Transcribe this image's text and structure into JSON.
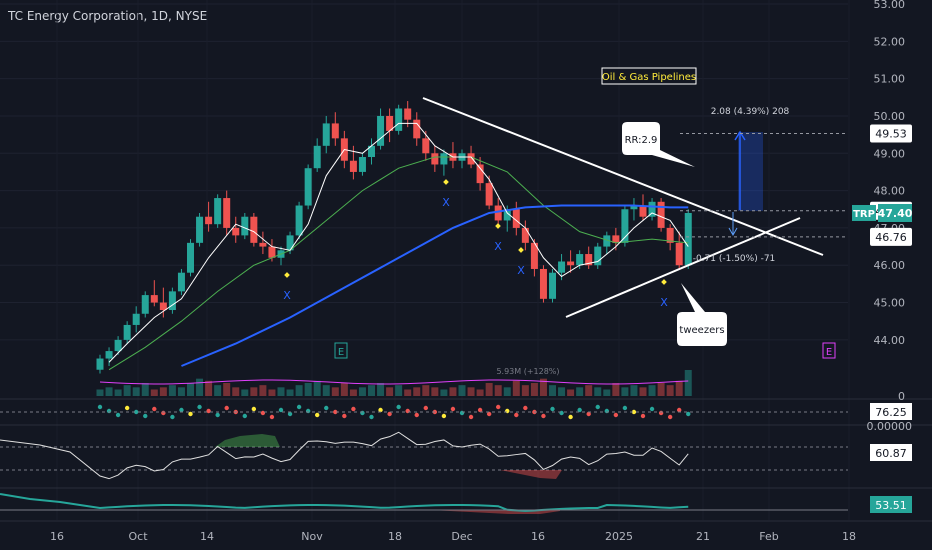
{
  "header": {
    "title": "TC Energy Corporation, 1D, NYSE"
  },
  "annotations": {
    "sector": "Oil & Gas Pipelines",
    "rr": "RR:2.9",
    "tweezers": "tweezers",
    "target_label": "2.08 (4.39%) 208",
    "stop_label": "-0.71 (-1.50%) -71",
    "volume_label": "5.93M (+128%)",
    "earnings_marker": "E",
    "x_marker": "X"
  },
  "colors": {
    "background": "#131722",
    "up": "#26a69a",
    "down": "#ef5350",
    "sma_fast": "#ffffff",
    "sma_mid": "#4caf50",
    "sma_slow": "#2962ff",
    "trendline": "#ffffff",
    "price_badge": "#26a69a",
    "oscillator_line": "#e0e0e0",
    "momentum_line": "#26a69a",
    "vol_ma": "#e040fb"
  },
  "chart_data": {
    "type": "candlestick",
    "x_ticks": [
      "16",
      "Oct",
      "14",
      "Nov",
      "18",
      "Dec",
      "16",
      "2025",
      "21",
      "Feb",
      "18"
    ],
    "y_ticks": [
      "53.00",
      "52.00",
      "51.00",
      "50.00",
      "49.00",
      "48.00",
      "47.00",
      "46.00",
      "45.00",
      "44.00"
    ],
    "ylim": [
      43.3,
      53.0
    ],
    "price_labels": [
      {
        "label": "",
        "value": "49.53",
        "price": 49.53
      },
      {
        "label": "",
        "value": "47.46",
        "price": 47.46
      },
      {
        "label": "TRP",
        "value": "47.40",
        "price": 47.4
      },
      {
        "label": "",
        "value": "46.76",
        "price": 46.76
      }
    ],
    "candles": [
      [
        43.2,
        43.6,
        43.1,
        43.5
      ],
      [
        43.5,
        43.8,
        43.3,
        43.7
      ],
      [
        43.7,
        44.1,
        43.6,
        44.0
      ],
      [
        44.0,
        44.5,
        43.9,
        44.4
      ],
      [
        44.4,
        44.9,
        44.2,
        44.7
      ],
      [
        44.7,
        45.3,
        44.6,
        45.2
      ],
      [
        45.2,
        45.6,
        44.9,
        45.0
      ],
      [
        45.0,
        45.4,
        44.6,
        44.8
      ],
      [
        44.8,
        45.4,
        44.7,
        45.3
      ],
      [
        45.3,
        45.9,
        45.2,
        45.8
      ],
      [
        45.8,
        46.7,
        45.7,
        46.6
      ],
      [
        46.6,
        47.4,
        46.5,
        47.3
      ],
      [
        47.3,
        47.7,
        46.9,
        47.1
      ],
      [
        47.1,
        47.9,
        47.0,
        47.8
      ],
      [
        47.8,
        48.0,
        46.8,
        47.0
      ],
      [
        47.0,
        47.3,
        46.6,
        46.8
      ],
      [
        46.8,
        47.4,
        46.7,
        47.3
      ],
      [
        47.3,
        47.4,
        46.5,
        46.6
      ],
      [
        46.6,
        46.9,
        46.3,
        46.5
      ],
      [
        46.5,
        46.7,
        46.1,
        46.2
      ],
      [
        46.2,
        46.5,
        46.0,
        46.4
      ],
      [
        46.4,
        46.9,
        46.3,
        46.8
      ],
      [
        46.8,
        47.7,
        46.7,
        47.6
      ],
      [
        47.6,
        48.7,
        47.5,
        48.6
      ],
      [
        48.6,
        49.4,
        48.5,
        49.2
      ],
      [
        49.2,
        50.0,
        49.0,
        49.8
      ],
      [
        49.8,
        50.1,
        49.2,
        49.4
      ],
      [
        49.4,
        49.6,
        48.6,
        48.8
      ],
      [
        48.8,
        49.2,
        48.3,
        48.5
      ],
      [
        48.5,
        49.0,
        48.4,
        48.9
      ],
      [
        48.9,
        49.4,
        48.7,
        49.2
      ],
      [
        49.2,
        50.2,
        49.1,
        50.0
      ],
      [
        50.0,
        50.2,
        49.3,
        49.6
      ],
      [
        49.6,
        50.3,
        49.5,
        50.2
      ],
      [
        50.2,
        50.4,
        49.7,
        49.9
      ],
      [
        49.9,
        50.1,
        49.2,
        49.4
      ],
      [
        49.4,
        49.6,
        48.8,
        49.0
      ],
      [
        49.0,
        49.2,
        48.5,
        48.7
      ],
      [
        48.7,
        49.1,
        48.4,
        49.0
      ],
      [
        49.0,
        49.3,
        48.6,
        48.8
      ],
      [
        48.8,
        49.1,
        48.6,
        49.0
      ],
      [
        49.0,
        49.2,
        48.6,
        48.7
      ],
      [
        48.7,
        48.9,
        48.0,
        48.2
      ],
      [
        48.2,
        48.4,
        47.5,
        47.6
      ],
      [
        47.6,
        47.8,
        47.0,
        47.2
      ],
      [
        47.2,
        47.6,
        46.9,
        47.5
      ],
      [
        47.5,
        47.7,
        46.8,
        47.0
      ],
      [
        47.0,
        47.2,
        46.4,
        46.6
      ],
      [
        46.6,
        46.7,
        45.7,
        45.9
      ],
      [
        45.9,
        46.0,
        45.0,
        45.1
      ],
      [
        45.1,
        45.9,
        45.0,
        45.8
      ],
      [
        45.8,
        46.3,
        45.6,
        46.1
      ],
      [
        46.1,
        46.4,
        45.8,
        46.0
      ],
      [
        46.0,
        46.4,
        45.9,
        46.3
      ],
      [
        46.3,
        46.5,
        45.9,
        46.0
      ],
      [
        46.0,
        46.6,
        45.9,
        46.5
      ],
      [
        46.5,
        46.9,
        46.3,
        46.8
      ],
      [
        46.8,
        47.0,
        46.4,
        46.6
      ],
      [
        46.6,
        47.6,
        46.5,
        47.5
      ],
      [
        47.5,
        47.8,
        47.2,
        47.6
      ],
      [
        47.6,
        47.9,
        47.2,
        47.3
      ],
      [
        47.3,
        47.8,
        47.2,
        47.7
      ],
      [
        47.7,
        47.8,
        46.9,
        47.0
      ],
      [
        47.0,
        47.1,
        46.4,
        46.6
      ],
      [
        46.6,
        46.9,
        45.9,
        46.0
      ],
      [
        46.0,
        47.5,
        45.9,
        47.4
      ]
    ],
    "sma_fast": [
      [
        1,
        43.4
      ],
      [
        3,
        43.9
      ],
      [
        6,
        44.6
      ],
      [
        9,
        45.1
      ],
      [
        12,
        46.2
      ],
      [
        15,
        47.1
      ],
      [
        17,
        46.9
      ],
      [
        19,
        46.5
      ],
      [
        21,
        46.4
      ],
      [
        23,
        47.1
      ],
      [
        25,
        48.4
      ],
      [
        27,
        49.1
      ],
      [
        29,
        49.0
      ],
      [
        31,
        49.4
      ],
      [
        33,
        49.8
      ],
      [
        35,
        49.8
      ],
      [
        37,
        49.2
      ],
      [
        39,
        48.9
      ],
      [
        41,
        48.9
      ],
      [
        43,
        48.3
      ],
      [
        45,
        47.4
      ],
      [
        47,
        47.0
      ],
      [
        49,
        46.2
      ],
      [
        51,
        45.7
      ],
      [
        53,
        46.0
      ],
      [
        55,
        46.1
      ],
      [
        57,
        46.5
      ],
      [
        59,
        47.0
      ],
      [
        61,
        47.4
      ],
      [
        63,
        47.2
      ],
      [
        65,
        46.5
      ]
    ],
    "sma_mid": [
      [
        1,
        43.2
      ],
      [
        5,
        43.8
      ],
      [
        9,
        44.5
      ],
      [
        13,
        45.3
      ],
      [
        17,
        46.0
      ],
      [
        21,
        46.4
      ],
      [
        25,
        47.2
      ],
      [
        29,
        48.0
      ],
      [
        33,
        48.6
      ],
      [
        37,
        48.9
      ],
      [
        41,
        48.9
      ],
      [
        45,
        48.5
      ],
      [
        49,
        47.6
      ],
      [
        53,
        46.9
      ],
      [
        57,
        46.6
      ],
      [
        61,
        46.7
      ],
      [
        65,
        46.6
      ]
    ],
    "sma_slow": [
      [
        9,
        43.3
      ],
      [
        15,
        43.9
      ],
      [
        21,
        44.6
      ],
      [
        27,
        45.4
      ],
      [
        33,
        46.2
      ],
      [
        39,
        47.0
      ],
      [
        43,
        47.4
      ],
      [
        47,
        47.55
      ],
      [
        51,
        47.6
      ],
      [
        55,
        47.6
      ],
      [
        59,
        47.6
      ],
      [
        63,
        47.55
      ],
      [
        65,
        47.55
      ]
    ],
    "volume": [
      3,
      4,
      3,
      5,
      4,
      6,
      3,
      4,
      5,
      4,
      6,
      8,
      7,
      5,
      6,
      4,
      3,
      4,
      5,
      3,
      4,
      3,
      5,
      6,
      7,
      5,
      4,
      6,
      3,
      4,
      5,
      6,
      4,
      5,
      3,
      4,
      5,
      4,
      3,
      4,
      5,
      4,
      3,
      6,
      5,
      4,
      7,
      5,
      6,
      8,
      5,
      4,
      3,
      4,
      5,
      4,
      3,
      6,
      4,
      5,
      4,
      5,
      6,
      5,
      7,
      12
    ],
    "rsi_ticks": [
      "0",
      "0.00000"
    ],
    "oscillator_values": [
      "76.25",
      "60.87",
      "53.51"
    ]
  }
}
